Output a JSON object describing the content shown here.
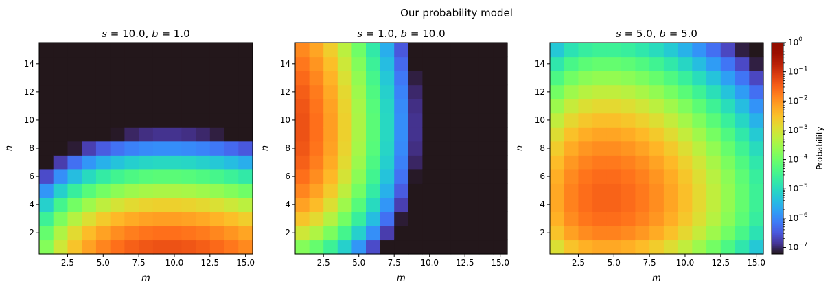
{
  "figure": {
    "suptitle": "Our probability model"
  },
  "colorbar": {
    "label": "Probability",
    "scale": "log",
    "range": [
      6e-08,
      1.0
    ],
    "colormap": "turbo",
    "ticks": [
      {
        "base": "10",
        "exp": "0",
        "value": 1.0
      },
      {
        "base": "10",
        "exp": "−1",
        "value": 0.1
      },
      {
        "base": "10",
        "exp": "−2",
        "value": 0.01
      },
      {
        "base": "10",
        "exp": "−3",
        "value": 0.001
      },
      {
        "base": "10",
        "exp": "−4",
        "value": 0.0001
      },
      {
        "base": "10",
        "exp": "−5",
        "value": 1e-05
      },
      {
        "base": "10",
        "exp": "−6",
        "value": 1e-06
      },
      {
        "base": "10",
        "exp": "−7",
        "value": 1e-07
      }
    ]
  },
  "chart_data": [
    {
      "type": "heatmap",
      "title_prefix": "s = 10.0, b = 1.0",
      "title_parts": {
        "s": "10.0",
        "b": "1.0"
      },
      "xlabel": "m",
      "ylabel": "n",
      "x_ticks": [
        "2.5",
        "5.0",
        "7.5",
        "10.0",
        "12.5",
        "15.0"
      ],
      "y_ticks": [
        "2",
        "4",
        "6",
        "8",
        "10",
        "12",
        "14"
      ],
      "xlim": [
        0.5,
        15.5
      ],
      "ylim": [
        0.5,
        15.5
      ],
      "grid_size": 15,
      "params": {
        "s": 10.0,
        "b": 1.0
      },
      "value_scale": "log10 probability"
    },
    {
      "type": "heatmap",
      "title_parts": {
        "s": "1.0",
        "b": "10.0"
      },
      "xlabel": "m",
      "ylabel": "n",
      "x_ticks": [
        "2.5",
        "5.0",
        "7.5",
        "10.0",
        "12.5",
        "15.0"
      ],
      "y_ticks": [
        "2",
        "4",
        "6",
        "8",
        "10",
        "12",
        "14"
      ],
      "xlim": [
        0.5,
        15.5
      ],
      "ylim": [
        0.5,
        15.5
      ],
      "grid_size": 15,
      "params": {
        "s": 1.0,
        "b": 10.0
      },
      "value_scale": "log10 probability"
    },
    {
      "type": "heatmap",
      "title_parts": {
        "s": "5.0",
        "b": "5.0"
      },
      "xlabel": "m",
      "ylabel": "n",
      "x_ticks": [
        "2.5",
        "5.0",
        "7.5",
        "10.0",
        "12.5",
        "15.0"
      ],
      "y_ticks": [
        "2",
        "4",
        "6",
        "8",
        "10",
        "12",
        "14"
      ],
      "xlim": [
        0.5,
        15.5
      ],
      "ylim": [
        0.5,
        15.5
      ],
      "grid_size": 15,
      "params": {
        "s": 5.0,
        "b": 5.0
      },
      "value_scale": "log10 probability"
    }
  ]
}
